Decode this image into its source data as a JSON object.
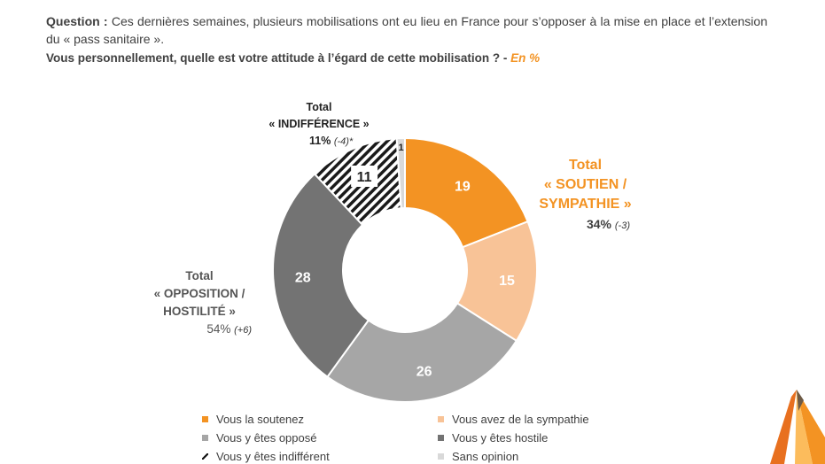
{
  "header": {
    "question_label": "Question :",
    "question_text": "Ces dernières semaines, plusieurs mobilisations ont eu lieu en France pour s’opposer à la mise en place et l’extension du « pass sanitaire ».",
    "subtitle": "Vous personnellement, quelle est votre attitude à l’égard de cette mobilisation ? -",
    "unit": "En %"
  },
  "totals": {
    "indifference": {
      "line1": "Total",
      "line2": "« INDIFFÉRENCE »",
      "pct": "11%",
      "delta": "(-4)*"
    },
    "soutien": {
      "line1": "Total",
      "line2": "« SOUTIEN /",
      "line3": "SYMPATHIE »",
      "pct": "34%",
      "delta": "(-3)"
    },
    "opposition": {
      "line1": "Total",
      "line2": "« OPPOSITION /",
      "line3": "HOSTILITÉ »",
      "pct": "54%",
      "delta": "(+6)"
    }
  },
  "chart_data": {
    "type": "pie",
    "donut": true,
    "categories": [
      "Vous la soutenez",
      "Vous avez de la sympathie",
      "Vous y êtes opposé",
      "Vous y êtes hostile",
      "Vous y êtes indifférent",
      "Sans opinion"
    ],
    "values": [
      19,
      15,
      26,
      28,
      11,
      1
    ],
    "colors": [
      "#f39323",
      "#f8c397",
      "#a6a6a6",
      "#737373",
      "hatch",
      "#d9d9d9"
    ],
    "label_colors": [
      "#ffffff",
      "#ffffff",
      "#ffffff",
      "#ffffff",
      "#222222",
      "#222222"
    ]
  },
  "legend": [
    {
      "label": "Vous la soutenez",
      "color": "#f39323"
    },
    {
      "label": "Vous avez de la sympathie",
      "color": "#f8c397"
    },
    {
      "label": "Vous y êtes opposé",
      "color": "#a6a6a6"
    },
    {
      "label": "Vous y êtes hostile",
      "color": "#737373"
    },
    {
      "label": "Vous y êtes indifférent",
      "color": "hatch"
    },
    {
      "label": "Sans opinion",
      "color": "#d9d9d9"
    }
  ]
}
